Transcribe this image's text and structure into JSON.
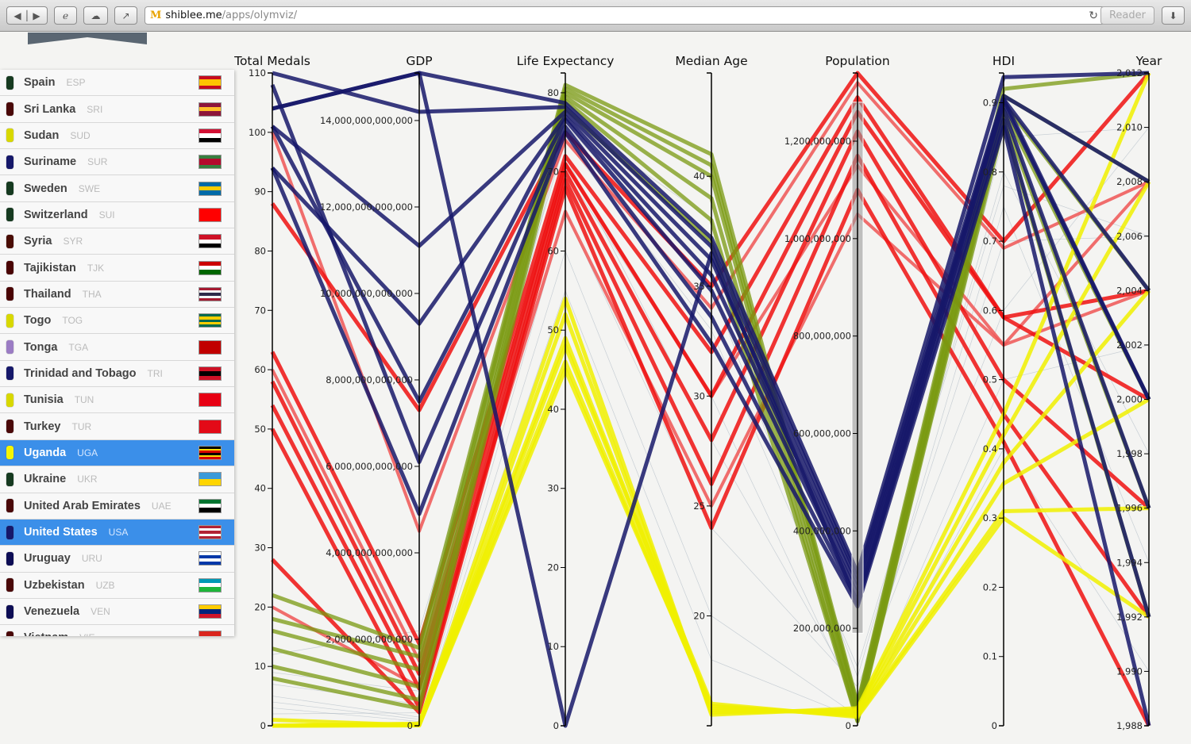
{
  "browser": {
    "host": "shiblee.me",
    "path": "/apps/olymviz/",
    "reader_label": "Reader",
    "logo": "M",
    "icons": [
      "back-icon",
      "forward-icon",
      "history-icon",
      "icloud-icon",
      "share-icon",
      "reload-icon",
      "download-icon"
    ]
  },
  "sidebar": {
    "items": [
      {
        "name": "Spain",
        "code": "ESP",
        "color": "#163a20",
        "flag": [
          "#c60b1e",
          "#ffc400",
          "#ffc400",
          "#c60b1e"
        ]
      },
      {
        "name": "Sri Lanka",
        "code": "SRI",
        "color": "#4a0808",
        "flag": [
          "#8d153a",
          "#ffbe29",
          "#8d153a"
        ]
      },
      {
        "name": "Sudan",
        "code": "SUD",
        "color": "#d8d800",
        "flag": [
          "#d21034",
          "#ffffff",
          "#000000"
        ]
      },
      {
        "name": "Suriname",
        "code": "SUR",
        "color": "#16186a",
        "flag": [
          "#377e3f",
          "#b40a2d",
          "#b40a2d",
          "#377e3f"
        ]
      },
      {
        "name": "Sweden",
        "code": "SWE",
        "color": "#163a20",
        "flag": [
          "#006aa7",
          "#fecc00",
          "#006aa7"
        ]
      },
      {
        "name": "Switzerland",
        "code": "SUI",
        "color": "#163a20",
        "flag": [
          "#ff0000",
          "#ff0000"
        ]
      },
      {
        "name": "Syria",
        "code": "SYR",
        "color": "#4a0d04",
        "flag": [
          "#ce1126",
          "#ffffff",
          "#000000"
        ]
      },
      {
        "name": "Tajikistan",
        "code": "TJK",
        "color": "#4a0404",
        "flag": [
          "#cc0000",
          "#ffffff",
          "#006600"
        ]
      },
      {
        "name": "Thailand",
        "code": "THA",
        "color": "#4a0404",
        "flag": [
          "#a51931",
          "#f4f5f8",
          "#2d2a4a",
          "#f4f5f8",
          "#a51931"
        ]
      },
      {
        "name": "Togo",
        "code": "TOG",
        "color": "#d8d800",
        "flag": [
          "#006a4e",
          "#ffce00",
          "#006a4e",
          "#ffce00",
          "#006a4e"
        ]
      },
      {
        "name": "Tonga",
        "code": "TGA",
        "color": "#9b7cc4",
        "flag": [
          "#c10000",
          "#c10000"
        ]
      },
      {
        "name": "Trinidad and Tobago",
        "code": "TRI",
        "color": "#16186a",
        "flag": [
          "#ce1126",
          "#000000",
          "#ce1126"
        ]
      },
      {
        "name": "Tunisia",
        "code": "TUN",
        "color": "#d8d800",
        "flag": [
          "#e70013",
          "#e70013"
        ]
      },
      {
        "name": "Turkey",
        "code": "TUR",
        "color": "#4a0808",
        "flag": [
          "#e30a17",
          "#e30a17"
        ]
      },
      {
        "name": "Uganda",
        "code": "UGA",
        "color": "#f5f500",
        "selected": true,
        "flag": [
          "#000000",
          "#fcdc04",
          "#d90000",
          "#000000",
          "#fcdc04",
          "#d90000"
        ]
      },
      {
        "name": "Ukraine",
        "code": "UKR",
        "color": "#163a20",
        "flag": [
          "#3b9ad9",
          "#ffd500"
        ]
      },
      {
        "name": "United Arab Emirates",
        "code": "UAE",
        "color": "#4a0808",
        "flag": [
          "#00732f",
          "#ffffff",
          "#000000"
        ]
      },
      {
        "name": "United States",
        "code": "USA",
        "color": "#16186a",
        "selected": true,
        "flag": [
          "#b22234",
          "#ffffff",
          "#b22234",
          "#ffffff",
          "#b22234"
        ]
      },
      {
        "name": "Uruguay",
        "code": "URU",
        "color": "#0d0d55",
        "flag": [
          "#ffffff",
          "#0038a8",
          "#ffffff",
          "#0038a8"
        ]
      },
      {
        "name": "Uzbekistan",
        "code": "UZB",
        "color": "#4a0808",
        "flag": [
          "#0099b5",
          "#ffffff",
          "#1eb53a"
        ]
      },
      {
        "name": "Venezuela",
        "code": "VEN",
        "color": "#0d0d55",
        "flag": [
          "#ffcc00",
          "#00247d",
          "#cf142b"
        ]
      },
      {
        "name": "Vietnam",
        "code": "VIE",
        "color": "#4a0808",
        "flag": [
          "#da251d",
          "#da251d"
        ]
      }
    ]
  },
  "chart_data": {
    "type": "parallel-coordinates",
    "axes": [
      {
        "label": "Total Medals",
        "domain": [
          0,
          110
        ],
        "ticks": [
          0,
          10,
          20,
          30,
          40,
          50,
          60,
          70,
          80,
          90,
          100,
          110
        ]
      },
      {
        "label": "GDP",
        "domain": [
          0,
          15100000000000
        ],
        "ticks": [
          0,
          2000000000000,
          4000000000000,
          6000000000000,
          8000000000000,
          10000000000000,
          12000000000000,
          14000000000000
        ]
      },
      {
        "label": "Life Expectancy",
        "domain": [
          0,
          82.5
        ],
        "ticks": [
          0,
          10,
          20,
          30,
          40,
          50,
          60,
          70,
          80
        ]
      },
      {
        "label": "Median Age",
        "domain": [
          15,
          44.7
        ],
        "ticks": [
          20,
          25,
          30,
          35,
          40
        ]
      },
      {
        "label": "Population",
        "domain": [
          0,
          1340000000
        ],
        "ticks": [
          0,
          200000000,
          400000000,
          600000000,
          800000000,
          1000000000,
          1200000000
        ],
        "brush": [
          190000000,
          1280000000
        ]
      },
      {
        "label": "HDI",
        "domain": [
          0,
          0.943
        ],
        "ticks": [
          0.0,
          0.1,
          0.2,
          0.3,
          0.4,
          0.5,
          0.6,
          0.7,
          0.8,
          0.9
        ]
      },
      {
        "label": "Year",
        "domain": [
          1988,
          2012
        ],
        "ticks": [
          1988,
          1990,
          1992,
          1994,
          1996,
          1998,
          2000,
          2002,
          2004,
          2006,
          2008,
          2010,
          2012
        ]
      }
    ],
    "colors": {
      "usa": "#16186a",
      "china": "#ee1010",
      "china_light": "#ef5555",
      "uganda": "#f0f000",
      "olive": "#7a9a10",
      "context": "#8899aa"
    },
    "lines": [
      {
        "group": "usa",
        "values": [
          104,
          15100000000000,
          78.7,
          37.2,
          314000000,
          0.937,
          2012
        ]
      },
      {
        "group": "usa",
        "values": [
          110,
          14200000000000,
          78.2,
          36.8,
          304000000,
          0.91,
          2008
        ]
      },
      {
        "group": "usa",
        "values": [
          101,
          11100000000000,
          77.6,
          36.2,
          293000000,
          0.905,
          2004
        ]
      },
      {
        "group": "usa",
        "values": [
          94,
          9300000000000,
          77.0,
          35.5,
          282000000,
          0.9,
          2000
        ]
      },
      {
        "group": "usa",
        "values": [
          101,
          7500000000000,
          76.6,
          34.8,
          269000000,
          0.89,
          1996
        ]
      },
      {
        "group": "usa",
        "values": [
          108,
          6100000000000,
          75.7,
          33.6,
          256000000,
          0.875,
          1992
        ]
      },
      {
        "group": "usa",
        "values": [
          94,
          4900000000000,
          75.0,
          32.4,
          245000000,
          0.865,
          1988
        ]
      },
      {
        "group": "usa",
        "values": [
          104,
          15100000000000,
          0,
          36.5,
          250000000,
          0.905,
          2000
        ]
      },
      {
        "group": "china",
        "values": [
          88,
          7300000000000,
          75,
          35,
          1340000000,
          0.7,
          2012
        ]
      },
      {
        "group": "china_light",
        "values": [
          100,
          4500000000000,
          74,
          34,
          1320000000,
          0.69,
          2008
        ]
      },
      {
        "group": "china",
        "values": [
          63,
          1900000000000,
          72,
          32,
          1290000000,
          0.59,
          2004
        ]
      },
      {
        "group": "china",
        "values": [
          58,
          1200000000000,
          71,
          30,
          1260000000,
          0.59,
          2000
        ]
      },
      {
        "group": "china",
        "values": [
          54,
          860000000000,
          70,
          28,
          1220000000,
          0.5,
          1996
        ]
      },
      {
        "group": "china",
        "values": [
          50,
          420000000000,
          69,
          26,
          1170000000,
          0.45,
          1992
        ]
      },
      {
        "group": "china",
        "values": [
          28,
          310000000000,
          68,
          24,
          1100000000,
          0.41,
          1988
        ]
      },
      {
        "group": "china_light",
        "values": [
          60,
          1500000000000,
          71,
          30,
          1150000000,
          0.55,
          2008
        ]
      },
      {
        "group": "china_light",
        "values": [
          20,
          900000000000,
          65,
          25,
          1050000000,
          0.55,
          2004
        ]
      },
      {
        "group": "uganda",
        "values": [
          0,
          50000000000,
          54,
          15.5,
          36000000,
          0.45,
          2012
        ]
      },
      {
        "group": "uganda",
        "values": [
          0,
          30000000000,
          52,
          15.6,
          32000000,
          0.42,
          2008
        ]
      },
      {
        "group": "uganda",
        "values": [
          0,
          20000000000,
          49,
          15.7,
          28000000,
          0.38,
          2004
        ]
      },
      {
        "group": "uganda",
        "values": [
          0,
          15000000000,
          46,
          15.8,
          24000000,
          0.35,
          2000
        ]
      },
      {
        "group": "uganda",
        "values": [
          1,
          10000000000,
          45,
          15.9,
          21000000,
          0.31,
          1996
        ]
      },
      {
        "group": "uganda",
        "values": [
          0,
          8000000000,
          48,
          16,
          18000000,
          0.3,
          1992
        ]
      },
      {
        "group": "olive",
        "values": [
          22,
          1800000000000,
          81,
          41,
          45000000,
          0.92,
          2012
        ]
      },
      {
        "group": "olive",
        "values": [
          18,
          1600000000000,
          80.5,
          40.5,
          40000000,
          0.91,
          2008
        ]
      },
      {
        "group": "olive",
        "values": [
          16,
          1300000000000,
          80,
          40,
          30000000,
          0.9,
          2004
        ]
      },
      {
        "group": "olive",
        "values": [
          13,
          900000000000,
          79.5,
          39,
          20000000,
          0.89,
          2000
        ]
      },
      {
        "group": "olive",
        "values": [
          10,
          600000000000,
          79,
          38,
          10000000,
          0.88,
          1996
        ]
      },
      {
        "group": "olive",
        "values": [
          8,
          400000000000,
          78,
          37,
          9000000,
          0.87,
          1992
        ]
      },
      {
        "group": "context",
        "values": [
          5,
          200000000000,
          72,
          28,
          60000000,
          0.7,
          2006
        ]
      },
      {
        "group": "context",
        "values": [
          3,
          100000000000,
          65,
          24,
          80000000,
          0.6,
          2010
        ]
      },
      {
        "group": "context",
        "values": [
          2,
          300000000000,
          70,
          30,
          40000000,
          0.75,
          1994
        ]
      },
      {
        "group": "context",
        "values": [
          7,
          500000000000,
          76,
          35,
          100000000,
          0.8,
          1998
        ]
      },
      {
        "group": "context",
        "values": [
          1,
          50000000000,
          60,
          20,
          20000000,
          0.5,
          2002
        ]
      },
      {
        "group": "context",
        "values": [
          4,
          150000000000,
          55,
          18,
          15000000,
          0.4,
          1990
        ]
      },
      {
        "group": "context",
        "values": [
          9,
          800000000000,
          77,
          38,
          50000000,
          0.85,
          2010
        ]
      },
      {
        "group": "context",
        "values": [
          12,
          2200000000000,
          74,
          33,
          120000000,
          0.78,
          2006
        ]
      }
    ]
  }
}
